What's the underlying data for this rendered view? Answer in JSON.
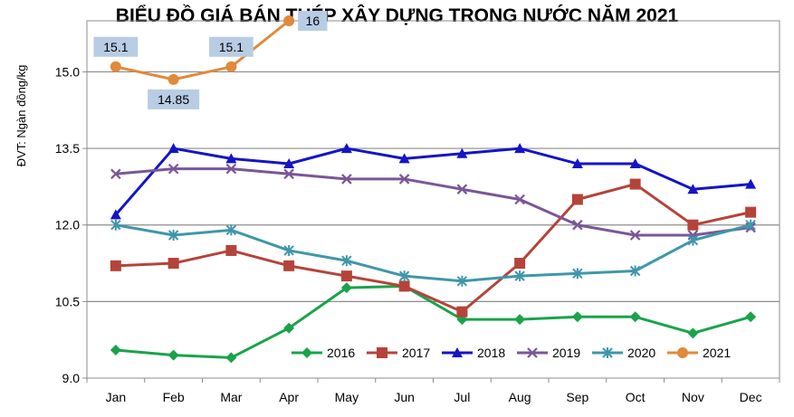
{
  "chart_data": {
    "type": "line",
    "title": "BIỂU ĐỒ GIÁ BÁN THÉP XÂY DỰNG TRONG NƯỚC NĂM 2021",
    "ylabel": "ĐVT: Ngàn đồng/kg",
    "xlabel": "",
    "categories": [
      "Jan",
      "Feb",
      "Mar",
      "Apr",
      "May",
      "Jun",
      "Jul",
      "Aug",
      "Sep",
      "Oct",
      "Nov",
      "Dec"
    ],
    "y_ticks": [
      "9.0",
      "10.5",
      "12.0",
      "13.5",
      "15.0"
    ],
    "ylim": [
      9.0,
      16.0
    ],
    "grid": true,
    "legend_position": "bottom-inside",
    "series": [
      {
        "name": "2016",
        "color": "#1aa34a",
        "marker": "diamond",
        "values": [
          9.55,
          9.45,
          9.4,
          9.98,
          10.77,
          10.8,
          10.15,
          10.15,
          10.2,
          10.2,
          9.88,
          10.2
        ]
      },
      {
        "name": "2017",
        "color": "#b5433a",
        "marker": "square",
        "values": [
          11.2,
          11.25,
          11.5,
          11.2,
          11.0,
          10.8,
          10.3,
          11.25,
          12.5,
          12.8,
          12.0,
          12.25
        ]
      },
      {
        "name": "2018",
        "color": "#1414c8",
        "marker": "triangle",
        "values": [
          12.2,
          13.5,
          13.3,
          13.2,
          13.5,
          13.3,
          13.4,
          13.5,
          13.2,
          13.2,
          12.7,
          12.8
        ]
      },
      {
        "name": "2019",
        "color": "#7a5698",
        "marker": "x",
        "values": [
          13.0,
          13.1,
          13.1,
          13.0,
          12.9,
          12.9,
          12.7,
          12.5,
          12.0,
          11.8,
          11.8,
          11.95
        ]
      },
      {
        "name": "2020",
        "color": "#3f97aa",
        "marker": "star",
        "values": [
          12.0,
          11.8,
          11.9,
          11.5,
          11.3,
          11.0,
          10.9,
          11.0,
          11.05,
          11.1,
          11.7,
          12.0
        ]
      },
      {
        "name": "2021",
        "color": "#e08a3b",
        "marker": "circle",
        "values": [
          15.1,
          14.85,
          15.1,
          16.0,
          null,
          null,
          null,
          null,
          null,
          null,
          null,
          null
        ]
      }
    ],
    "data_labels": [
      {
        "series": "2021",
        "index": 0,
        "text": "15.1",
        "placement": "above"
      },
      {
        "series": "2021",
        "index": 1,
        "text": "14.85",
        "placement": "below"
      },
      {
        "series": "2021",
        "index": 2,
        "text": "15.1",
        "placement": "above"
      },
      {
        "series": "2021",
        "index": 3,
        "text": "16",
        "placement": "right"
      }
    ]
  }
}
